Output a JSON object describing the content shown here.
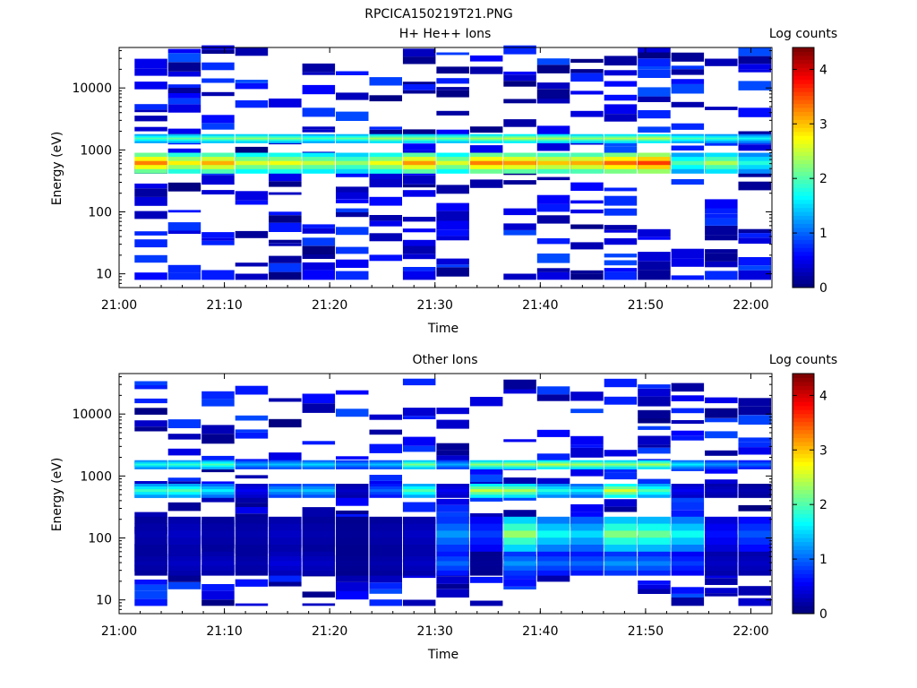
{
  "figure": {
    "title": "RPCICA150219T21.PNG"
  },
  "chart_data": [
    {
      "type": "heatmap",
      "title": "H+ He++ Ions",
      "xlabel": "Time",
      "ylabel": "Energy (eV)",
      "x_range": [
        "21:00",
        "22:02"
      ],
      "y_range": [
        6,
        45000
      ],
      "y_scale": "log",
      "x_ticks": [
        "21:00",
        "21:10",
        "21:20",
        "21:30",
        "21:40",
        "21:50",
        "22:00"
      ],
      "y_ticks": [
        "10",
        "100",
        "1000",
        "10000"
      ],
      "colorbar": {
        "label": "Log counts",
        "min": 0,
        "max": 4.4,
        "ticks": [
          "0",
          "1",
          "2",
          "3",
          "4"
        ]
      },
      "time_bins": [
        "21:03",
        "21:06",
        "21:09",
        "21:12",
        "21:16",
        "21:19",
        "21:22",
        "21:25",
        "21:28",
        "21:31",
        "21:34",
        "21:38",
        "21:41",
        "21:44",
        "21:47",
        "21:50",
        "21:53",
        "21:57",
        "22:00"
      ],
      "bands": [
        {
          "energy_range": [
            1300,
            1800
          ],
          "values": [
            2.0,
            2.1,
            2.2,
            2.3,
            2.2,
            2.0,
            2.1,
            2.4,
            2.3,
            2.2,
            2.4,
            2.5,
            2.4,
            2.3,
            2.4,
            2.5,
            2.0,
            1.9,
            1.7
          ]
        },
        {
          "energy_range": [
            420,
            900
          ],
          "values": [
            3.3,
            2.8,
            3.1,
            2.6,
            2.7,
            2.5,
            2.3,
            2.7,
            3.2,
            2.6,
            3.3,
            3.2,
            3.0,
            3.1,
            3.4,
            3.6,
            2.0,
            2.4,
            1.8
          ]
        }
      ],
      "background": "sparse low counts (0-1) from ~10 eV to ~40000 eV"
    },
    {
      "type": "heatmap",
      "title": "Other Ions",
      "xlabel": "Time",
      "ylabel": "Energy (eV)",
      "x_range": [
        "21:00",
        "22:02"
      ],
      "y_range": [
        6,
        45000
      ],
      "y_scale": "log",
      "x_ticks": [
        "21:00",
        "21:10",
        "21:20",
        "21:30",
        "21:40",
        "21:50",
        "22:00"
      ],
      "y_ticks": [
        "10",
        "100",
        "1000",
        "10000"
      ],
      "colorbar": {
        "label": "Log counts",
        "min": 0,
        "max": 4.4,
        "ticks": [
          "0",
          "1",
          "2",
          "3",
          "4"
        ]
      },
      "time_bins": [
        "21:03",
        "21:06",
        "21:09",
        "21:12",
        "21:16",
        "21:19",
        "21:22",
        "21:25",
        "21:28",
        "21:31",
        "21:34",
        "21:38",
        "21:41",
        "21:44",
        "21:47",
        "21:50",
        "21:53",
        "21:57",
        "22:00"
      ],
      "bands": [
        {
          "energy_range": [
            1300,
            1800
          ],
          "values": [
            1.8,
            1.9,
            2.0,
            1.3,
            1.4,
            1.5,
            1.2,
            1.4,
            2.2,
            1.3,
            2.3,
            2.4,
            2.5,
            2.4,
            2.3,
            2.4,
            1.6,
            1.2,
            1.0
          ]
        },
        {
          "energy_range": [
            450,
            750
          ],
          "values": [
            1.9,
            2.0,
            1.6,
            0.5,
            1.3,
            1.4,
            0.3,
            1.0,
            2.0,
            0.5,
            2.5,
            2.4,
            1.8,
            1.6,
            2.6,
            2.0,
            0.5,
            0.3,
            0.2
          ]
        },
        {
          "energy_range": [
            60,
            220
          ],
          "values": [
            0.2,
            0.3,
            0.2,
            0.2,
            0.3,
            0.2,
            0.1,
            0.2,
            0.3,
            1.2,
            0.8,
            2.3,
            1.7,
            1.5,
            2.2,
            2.1,
            1.7,
            0.6,
            0.9
          ]
        },
        {
          "energy_range": [
            25,
            60
          ],
          "values": [
            0.2,
            0.3,
            0.3,
            0.2,
            0.4,
            0.3,
            0.1,
            0.2,
            0.3,
            1.0,
            0.1,
            1.2,
            1.0,
            1.0,
            1.2,
            1.1,
            0.8,
            0.3,
            0.3
          ]
        }
      ],
      "background": "sparse low counts (0-1) from ~8 eV to ~30000 eV"
    }
  ]
}
